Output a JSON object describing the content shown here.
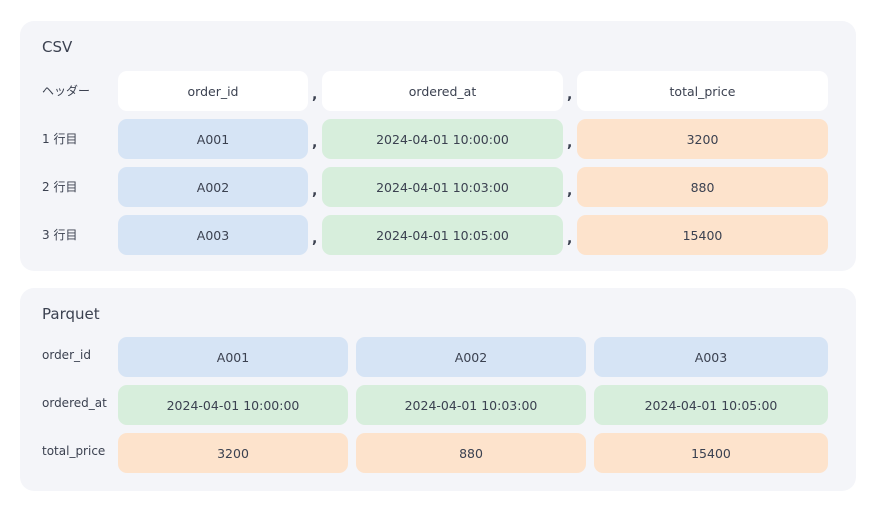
{
  "csv": {
    "title": "CSV",
    "rows": [
      {
        "label": "ヘッダー",
        "cells": [
          "order_id",
          "ordered_at",
          "total_price"
        ]
      },
      {
        "label": "1 行目",
        "cells": [
          "A001",
          "2024-04-01 10:00:00",
          "3200"
        ]
      },
      {
        "label": "2 行目",
        "cells": [
          "A002",
          "2024-04-01 10:03:00",
          "880"
        ]
      },
      {
        "label": "3 行目",
        "cells": [
          "A003",
          "2024-04-01 10:05:00",
          "15400"
        ]
      }
    ],
    "separator": ","
  },
  "parquet": {
    "title": "Parquet",
    "rows": [
      {
        "label": "order_id",
        "cells": [
          "A001",
          "A002",
          "A003"
        ]
      },
      {
        "label": "ordered_at",
        "cells": [
          "2024-04-01 10:00:00",
          "2024-04-01 10:03:00",
          "2024-04-01 10:05:00"
        ]
      },
      {
        "label": "total_price",
        "cells": [
          "3200",
          "880",
          "15400"
        ]
      }
    ]
  },
  "colors": {
    "panel_bg": "#f4f5f9",
    "header_cell": "#ffffff",
    "order_id": "#d6e4f5",
    "ordered_at": "#d7eedc",
    "total_price": "#fde3cc"
  }
}
